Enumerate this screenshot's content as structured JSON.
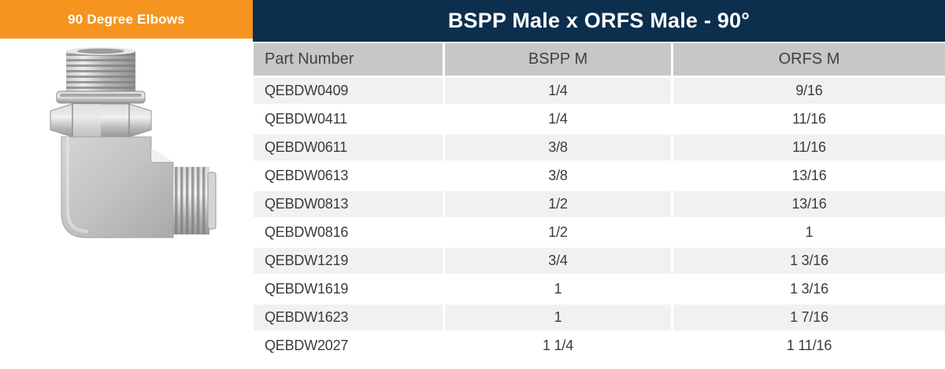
{
  "banner": {
    "label": "90 Degree Elbows"
  },
  "header": {
    "title": "BSPP Male x ORFS Male - 90°"
  },
  "table": {
    "columns": [
      "Part Number",
      "BSPP M",
      "ORFS M"
    ],
    "rows": [
      [
        "QEBDW0409",
        "1/4",
        "9/16"
      ],
      [
        "QEBDW0411",
        "1/4",
        "11/16"
      ],
      [
        "QEBDW0611",
        "3/8",
        "11/16"
      ],
      [
        "QEBDW0613",
        "3/8",
        "13/16"
      ],
      [
        "QEBDW0813",
        "1/2",
        "13/16"
      ],
      [
        "QEBDW0816",
        "1/2",
        "1"
      ],
      [
        "QEBDW1219",
        "3/4",
        "1 3/16"
      ],
      [
        "QEBDW1619",
        "1",
        "1 3/16"
      ],
      [
        "QEBDW1623",
        "1",
        "1 7/16"
      ],
      [
        "QEBDW2027",
        "1 1/4",
        "1 11/16"
      ]
    ]
  },
  "product_image": {
    "alt": "90 degree elbow hydraulic adaptor, steel"
  },
  "colors": {
    "orange": "#F5941F",
    "navy": "#0B2F4D",
    "headgray": "#C6C7C9",
    "rowgray": "#F1F1F3"
  }
}
